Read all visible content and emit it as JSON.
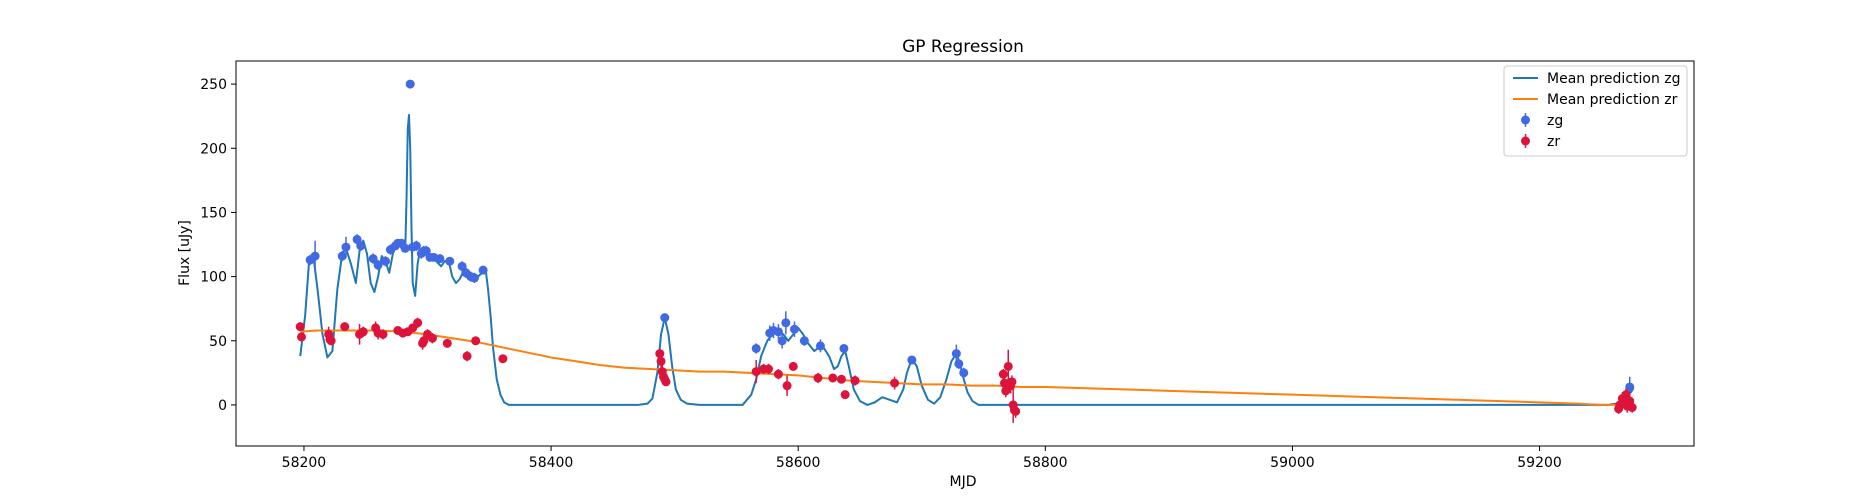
{
  "chart_data": {
    "type": "scatter",
    "title": "GP Regression",
    "xlabel": "MJD",
    "ylabel": "Flux [uJy]",
    "xlim": [
      58145,
      59325
    ],
    "ylim": [
      -32,
      268
    ],
    "xticks": [
      58200,
      58400,
      58600,
      58800,
      59000,
      59200
    ],
    "yticks": [
      0,
      50,
      100,
      150,
      200,
      250
    ],
    "legend_position": "top-right",
    "grid": false,
    "series": [
      {
        "name": "Mean prediction zg",
        "kind": "line",
        "color": "#1f77b4",
        "x": [
          58197,
          58201,
          58204,
          58206,
          58208,
          58211,
          58215,
          58219,
          58223,
          58227,
          58231,
          58234,
          58238,
          58242,
          58245,
          58248,
          58251,
          58254,
          58257,
          58260,
          58263,
          58266,
          58269,
          58272,
          58275,
          58278,
          58280,
          58282,
          58283,
          58284,
          58285,
          58286,
          58287,
          58288,
          58290,
          58292,
          58294,
          58296,
          58298,
          58300,
          58302,
          58305,
          58308,
          58311,
          58314,
          58317,
          58320,
          58323,
          58326,
          58329,
          58332,
          58335,
          58338,
          58341,
          58344,
          58347,
          58349,
          58351,
          58353,
          58356,
          58359,
          58362,
          58366,
          58370,
          58375,
          58380,
          58390,
          58400,
          58420,
          58450,
          58470,
          58478,
          58482,
          58486,
          58489,
          58492,
          58495,
          58498,
          58501,
          58505,
          58510,
          58520,
          58540,
          58555,
          58562,
          58566,
          58570,
          58575,
          58580,
          58585,
          58588,
          58592,
          58596,
          58600,
          58604,
          58608,
          58613,
          58617,
          58621,
          58625,
          58629,
          58632,
          58635,
          58638,
          58641,
          58645,
          58650,
          58656,
          58662,
          58668,
          58674,
          58680,
          58685,
          58688,
          58692,
          58696,
          58700,
          58705,
          58710,
          58715,
          58720,
          58724,
          58728,
          58731,
          58734,
          58737,
          58741,
          58746,
          58752,
          58758,
          58762,
          58765,
          58768,
          58772,
          58776,
          58780,
          58790,
          58800,
          59000,
          59200,
          59240,
          59255,
          59262,
          59266,
          59269,
          59272,
          59274,
          59276
        ],
        "y": [
          38,
          70,
          110,
          115,
          113,
          90,
          55,
          37,
          42,
          90,
          118,
          122,
          110,
          95,
          120,
          128,
          118,
          95,
          88,
          100,
          116,
          112,
          103,
          118,
          125,
          124,
          120,
          122,
          160,
          215,
          226,
          200,
          140,
          95,
          85,
          110,
          121,
          119,
          118,
          117,
          115,
          114,
          111,
          108,
          112,
          113,
          100,
          95,
          98,
          104,
          102,
          101,
          99,
          100,
          103,
          106,
          90,
          70,
          45,
          20,
          8,
          2,
          0,
          0,
          0,
          0,
          0,
          0,
          0,
          0,
          0,
          1,
          5,
          25,
          55,
          68,
          55,
          30,
          12,
          4,
          1,
          0,
          0,
          0,
          8,
          20,
          38,
          50,
          56,
          57,
          55,
          50,
          55,
          60,
          55,
          48,
          42,
          45,
          44,
          38,
          28,
          30,
          38,
          42,
          30,
          12,
          3,
          0,
          2,
          6,
          4,
          2,
          12,
          25,
          36,
          30,
          15,
          4,
          1,
          6,
          20,
          34,
          40,
          32,
          20,
          10,
          3,
          0,
          0,
          0,
          0,
          0,
          0,
          0,
          0,
          0,
          0,
          0,
          0,
          0,
          0,
          0,
          1,
          2,
          5,
          8,
          10,
          13
        ]
      },
      {
        "name": "Mean prediction zr",
        "kind": "line",
        "color": "#ff7f0e",
        "x": [
          58197,
          58210,
          58220,
          58240,
          58260,
          58280,
          58300,
          58320,
          58340,
          58360,
          58380,
          58400,
          58420,
          58440,
          58460,
          58480,
          58500,
          58520,
          58540,
          58560,
          58580,
          58600,
          58620,
          58640,
          58660,
          58680,
          58700,
          58720,
          58740,
          58760,
          58780,
          58800,
          58900,
          59000,
          59100,
          59200,
          59230,
          59250,
          59262,
          59270,
          59276
        ],
        "y": [
          57,
          58,
          58,
          58,
          58,
          57,
          55,
          52,
          49,
          45,
          41,
          37,
          34,
          31,
          29,
          28,
          27,
          26,
          26,
          25,
          24,
          23,
          21,
          19,
          18,
          17,
          16,
          16,
          15,
          15,
          14,
          14,
          11,
          8,
          5,
          2,
          1,
          0,
          0,
          0,
          1
        ]
      },
      {
        "name": "zg",
        "kind": "errorbar",
        "color": "#4169e1",
        "x": [
          58205,
          58209,
          58231,
          58234,
          58243,
          58246,
          58256,
          58260,
          58266,
          58270,
          58274,
          58276,
          58279,
          58282,
          58286,
          58288,
          58291,
          58295,
          58297,
          58299,
          58302,
          58305,
          58310,
          58318,
          58328,
          58331,
          58335,
          58338,
          58345,
          58492,
          58566,
          58577,
          58580,
          58584,
          58587,
          58590,
          58597,
          58605,
          58618,
          58637,
          58692,
          58728,
          58730,
          58734,
          59273
        ],
        "y": [
          113,
          116,
          116,
          123,
          129,
          124,
          114,
          109,
          112,
          121,
          124,
          126,
          126,
          122,
          250,
          123,
          124,
          118,
          120,
          120,
          115,
          115,
          114,
          112,
          108,
          103,
          100,
          99,
          105,
          68,
          44,
          56,
          58,
          57,
          50,
          64,
          59,
          50,
          46,
          44,
          35,
          40,
          32,
          25,
          14
        ],
        "err": [
          4,
          12,
          4,
          8,
          4,
          4,
          4,
          4,
          4,
          4,
          3,
          3,
          3,
          3,
          3,
          3,
          4,
          4,
          4,
          4,
          3,
          3,
          3,
          3,
          4,
          4,
          4,
          4,
          3,
          3,
          4,
          6,
          6,
          6,
          6,
          9,
          6,
          4,
          5,
          3,
          3,
          7,
          4,
          4,
          8
        ]
      },
      {
        "name": "zr",
        "kind": "errorbar",
        "color": "#dc143c",
        "x": [
          58197,
          58198,
          58220,
          58221,
          58222,
          58233,
          58245,
          58248,
          58258,
          58260,
          58264,
          58276,
          58280,
          58284,
          58288,
          58292,
          58296,
          58297,
          58300,
          58304,
          58316,
          58332,
          58339,
          58361,
          58488,
          58489,
          58490,
          58491,
          58492,
          58493,
          58566,
          58572,
          58576,
          58584,
          58591,
          58596,
          58616,
          58628,
          58635,
          58638,
          58646,
          58678,
          58766,
          58767,
          58768,
          58769,
          58770,
          58771,
          58772,
          58773,
          58774,
          58775,
          58776,
          59264,
          59265,
          59267,
          59269,
          59270,
          59271,
          59273,
          59275
        ],
        "y": [
          61,
          53,
          55,
          51,
          50,
          61,
          55,
          57,
          60,
          56,
          55,
          58,
          56,
          57,
          60,
          64,
          48,
          50,
          55,
          52,
          48,
          38,
          50,
          36,
          40,
          34,
          26,
          22,
          20,
          18,
          26,
          28,
          28,
          24,
          15,
          30,
          21,
          21,
          20,
          8,
          19,
          17,
          24,
          17,
          11,
          14,
          30,
          16,
          15,
          18,
          0,
          -4,
          -5,
          -3,
          0,
          5,
          2,
          8,
          -1,
          3,
          -2
        ],
        "err": [
          3,
          3,
          6,
          3,
          3,
          3,
          8,
          4,
          5,
          5,
          4,
          3,
          3,
          3,
          3,
          4,
          5,
          4,
          4,
          4,
          3,
          4,
          3,
          3,
          4,
          5,
          6,
          5,
          4,
          3,
          9,
          4,
          4,
          4,
          8,
          3,
          4,
          3,
          3,
          3,
          4,
          5,
          4,
          4,
          5,
          6,
          13,
          5,
          6,
          5,
          14,
          4,
          5,
          4,
          6,
          5,
          4,
          5,
          5,
          7,
          4
        ]
      }
    ]
  }
}
